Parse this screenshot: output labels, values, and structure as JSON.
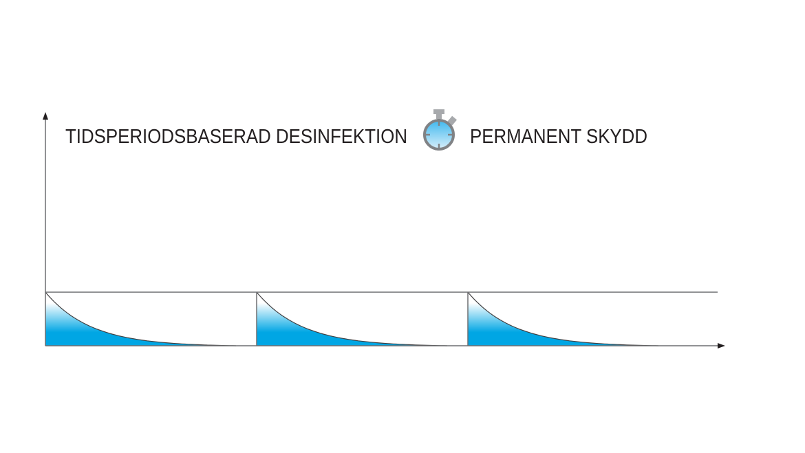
{
  "left_label": "TIDSPERIODSBASERAD DESINFEKTION",
  "right_label": "PERMANENT SKYDD",
  "icon": "stopwatch-icon",
  "cycles": 3,
  "colors": {
    "fill_bottom": "#00a6e4",
    "fill_top": "#ffffff",
    "axis": "#6d6e70",
    "stopwatch_face": "#5cc4f0",
    "stopwatch_frame": "#808285"
  }
}
